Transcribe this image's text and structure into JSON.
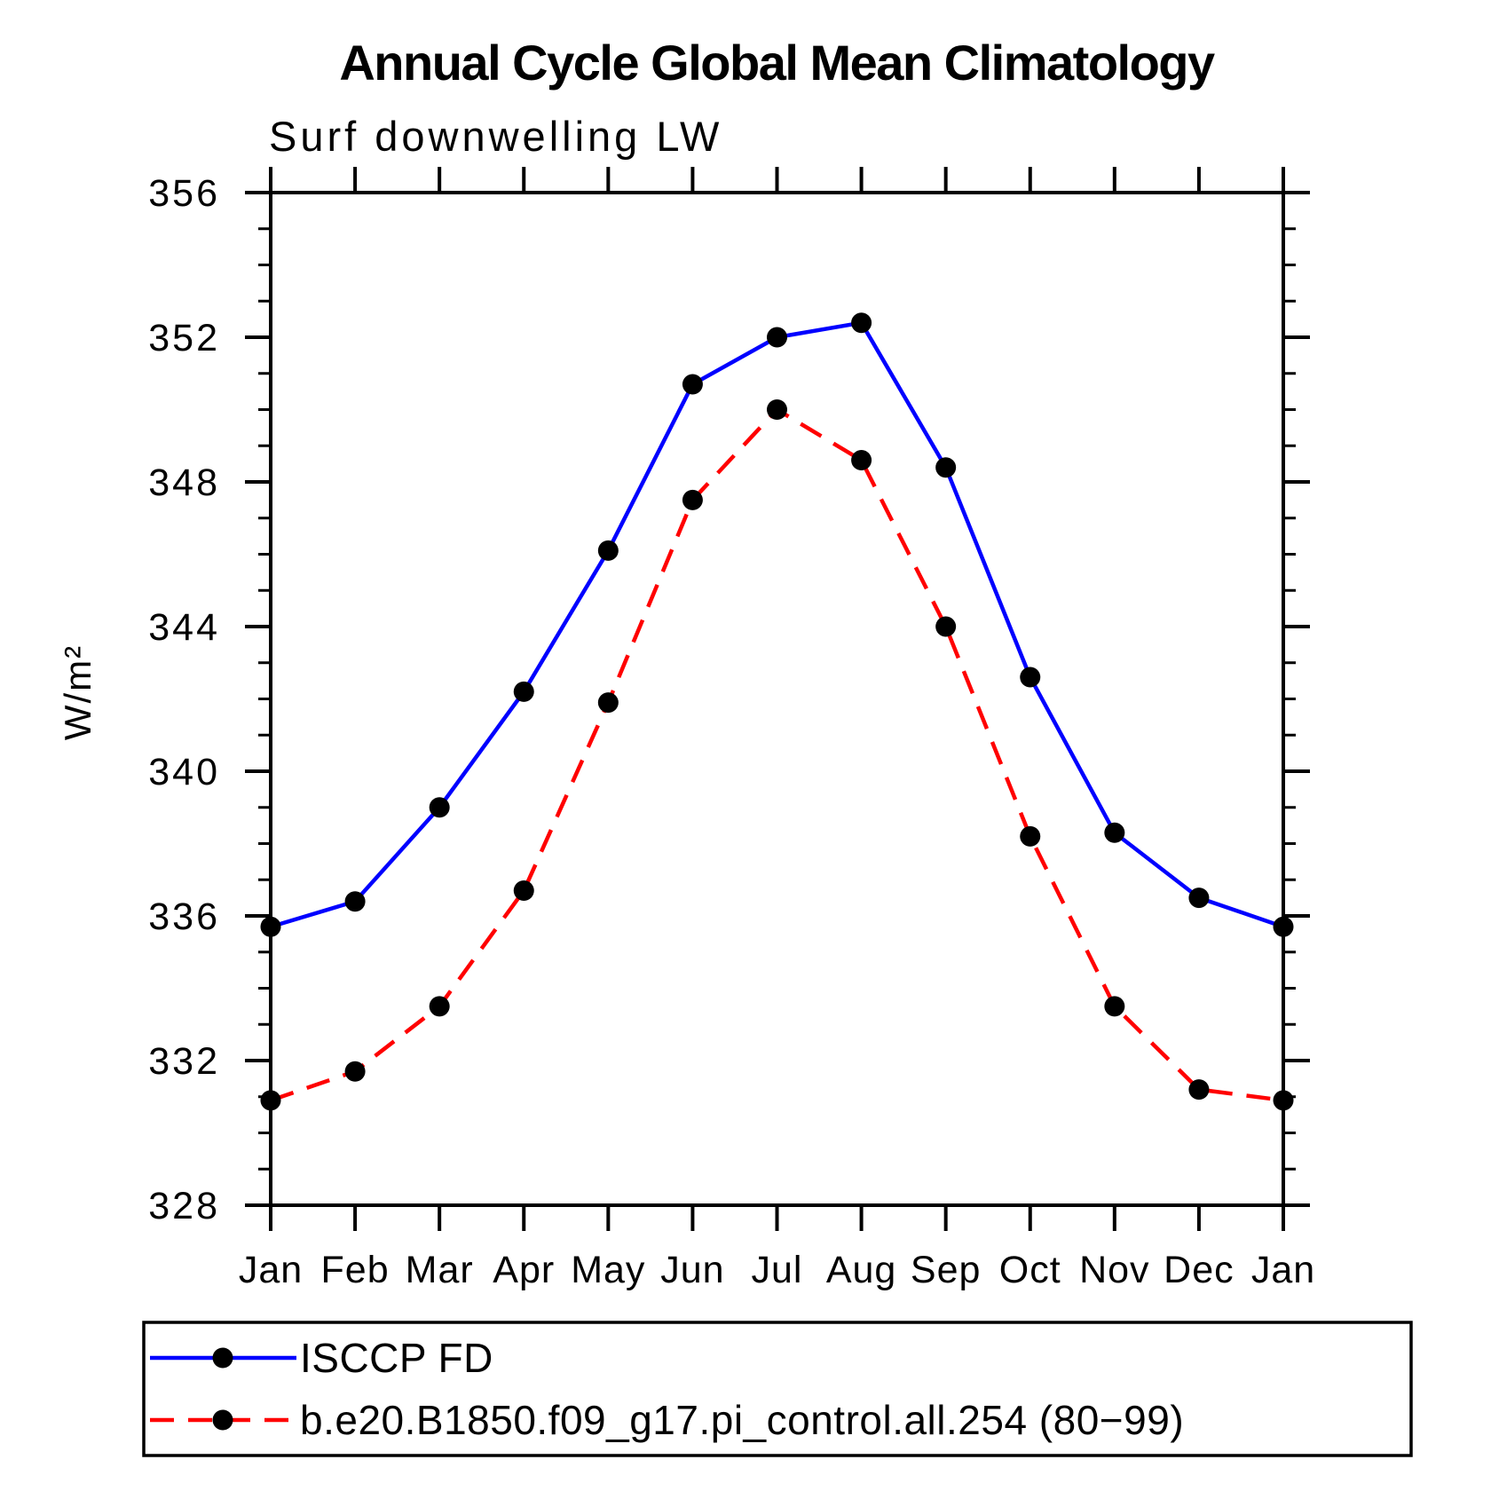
{
  "header": {
    "title": "Annual Cycle Global Mean Climatology"
  },
  "chart_data": {
    "type": "line",
    "subtitle": "Surf downwelling LW",
    "ylabel": "W/m²",
    "xlabel": "",
    "categories": [
      "Jan",
      "Feb",
      "Mar",
      "Apr",
      "May",
      "Jun",
      "Jul",
      "Aug",
      "Sep",
      "Oct",
      "Nov",
      "Dec",
      "Jan"
    ],
    "ylim": [
      328,
      356
    ],
    "y_ticks": [
      328,
      332,
      336,
      340,
      344,
      348,
      352,
      356
    ],
    "y_minor_interval": 1,
    "grid": false,
    "legend_position": "bottom",
    "series": [
      {
        "name": "ISCCP FD",
        "color": "#0000ff",
        "line_style": "solid",
        "marker": "circle",
        "marker_color": "#000000",
        "values": [
          335.7,
          336.4,
          339.0,
          342.2,
          346.1,
          350.7,
          352.0,
          352.4,
          348.4,
          342.6,
          338.3,
          336.5,
          335.7
        ]
      },
      {
        "name": "b.e20.B1850.f09_g17.pi_control.all.254 (80−99)",
        "color": "#ff0000",
        "line_style": "dashed",
        "marker": "circle",
        "marker_color": "#000000",
        "values": [
          330.9,
          331.7,
          333.5,
          336.7,
          341.9,
          347.5,
          350.0,
          348.6,
          344.0,
          338.2,
          333.5,
          331.2,
          330.9
        ]
      }
    ]
  }
}
